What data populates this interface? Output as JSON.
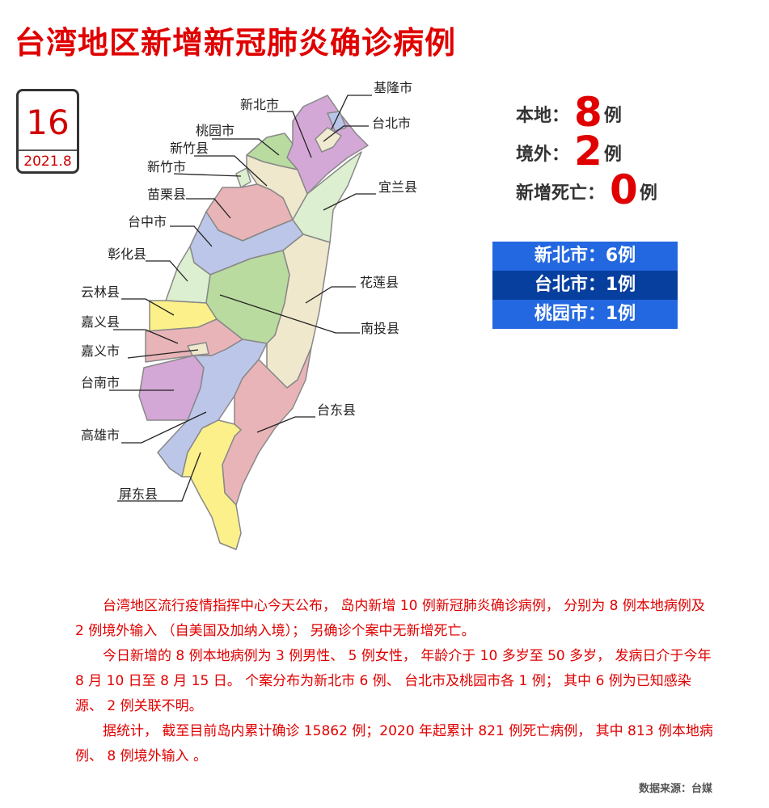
{
  "title": "台湾地区新增新冠肺炎确诊病例",
  "date": {
    "day": "16",
    "year_month": "2021.8"
  },
  "stats": [
    {
      "label": "本地：",
      "value": "8",
      "unit": "例"
    },
    {
      "label": "境外：",
      "value": "2",
      "unit": "例"
    },
    {
      "label": "新增死亡：",
      "value": "0",
      "unit": "例"
    }
  ],
  "distribution": [
    {
      "text": "新北市：6例",
      "color": "#2368e0"
    },
    {
      "text": "台北市：1例",
      "color": "#073f9e"
    },
    {
      "text": "桃园市：1例",
      "color": "#2368e0"
    }
  ],
  "map_labels": {
    "keelung": "基隆市",
    "newtaipei": "新北市",
    "taipei": "台北市",
    "taoyuan": "桃园市",
    "hsinchu_county": "新竹县",
    "hsinchu_city": "新竹市",
    "yilan": "宜兰县",
    "miaoli": "苗栗县",
    "taichung": "台中市",
    "changhua": "彰化县",
    "hualien": "花莲县",
    "yunlin": "云林县",
    "nantou": "南投县",
    "chiayi_county": "嘉义县",
    "chiayi_city": "嘉义市",
    "tainan": "台南市",
    "taitung": "台东县",
    "kaohsiung": "高雄市",
    "pingtung": "屏东县"
  },
  "paragraphs": [
    "台湾地区流行疫情指挥中心今天公布， 岛内新增 10 例新冠肺炎确诊病例， 分别为 8 例本地病例及 2 例境外输入 （自美国及加纳入境）； 另确诊个案中无新增死亡。",
    "今日新增的 8 例本地病例为 3 例男性、 5 例女性， 年龄介于 10 多岁至 50 多岁， 发病日介于今年 8 月 10 日至 8 月 15 日。 个案分布为新北市 6 例、 台北市及桃园市各 1 例； 其中 6 例为已知感染源、 2 例关联不明。",
    "据统计， 截至目前岛内累计确诊 15862 例；2020 年起累计 821 例死亡病例， 其中 813 例本地病例、 8 例境外输入 。"
  ],
  "source": "数据来源：台媒"
}
